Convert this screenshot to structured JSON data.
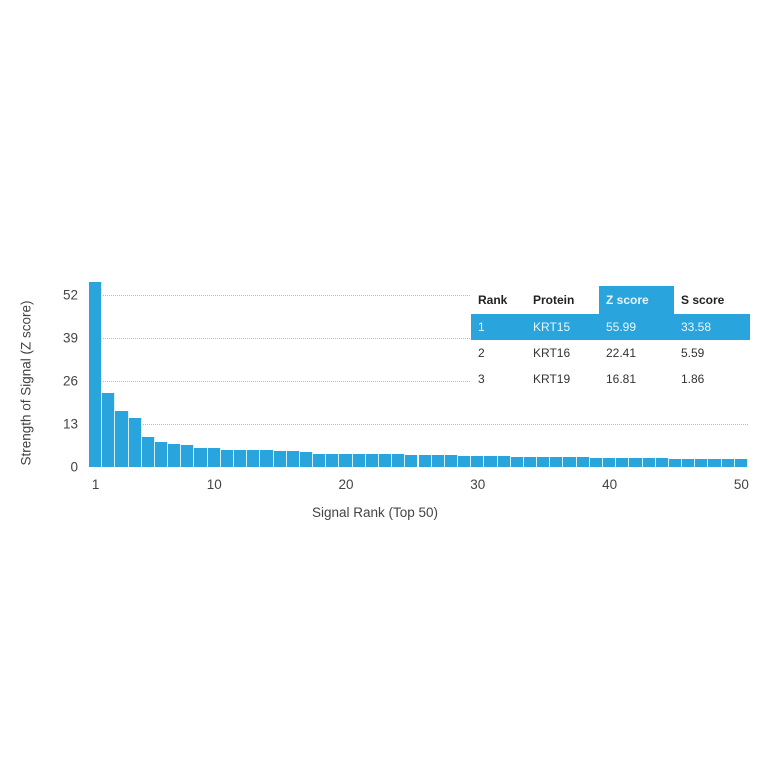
{
  "chart_data": {
    "type": "bar",
    "title": "",
    "xlabel": "Signal Rank (Top 50)",
    "ylabel": "Strength of Signal (Z score)",
    "ylim": [
      0,
      56
    ],
    "yticks": [
      0,
      13,
      26,
      39,
      52
    ],
    "xticks": [
      1,
      10,
      20,
      30,
      40,
      50
    ],
    "grid": true,
    "bar_color": "#29a4dd",
    "categories": [
      1,
      2,
      3,
      4,
      5,
      6,
      7,
      8,
      9,
      10,
      11,
      12,
      13,
      14,
      15,
      16,
      17,
      18,
      19,
      20,
      21,
      22,
      23,
      24,
      25,
      26,
      27,
      28,
      29,
      30,
      31,
      32,
      33,
      34,
      35,
      36,
      37,
      38,
      39,
      40,
      41,
      42,
      43,
      44,
      45,
      46,
      47,
      48,
      49,
      50
    ],
    "values": [
      55.99,
      22.41,
      16.81,
      14.9,
      9.0,
      7.6,
      6.9,
      6.7,
      5.7,
      5.7,
      5.2,
      5.1,
      5.0,
      5.0,
      4.7,
      4.7,
      4.4,
      4.0,
      3.9,
      3.9,
      3.8,
      3.8,
      3.8,
      3.8,
      3.7,
      3.7,
      3.6,
      3.5,
      3.4,
      3.3,
      3.2,
      3.2,
      3.1,
      3.1,
      3.0,
      3.0,
      2.9,
      2.9,
      2.8,
      2.8,
      2.7,
      2.7,
      2.6,
      2.6,
      2.5,
      2.5,
      2.4,
      2.4,
      2.3,
      2.3
    ],
    "table": {
      "columns": [
        "Rank",
        "Protein",
        "Z score",
        "S score"
      ],
      "highlighted_column": "Z score",
      "rows": [
        {
          "rank": "1",
          "protein": "KRT15",
          "z": "55.99",
          "s": "33.58",
          "highlighted": true
        },
        {
          "rank": "2",
          "protein": "KRT16",
          "z": "22.41",
          "s": "5.59",
          "highlighted": false
        },
        {
          "rank": "3",
          "protein": "KRT19",
          "z": "16.81",
          "s": "1.86",
          "highlighted": false
        }
      ]
    }
  }
}
